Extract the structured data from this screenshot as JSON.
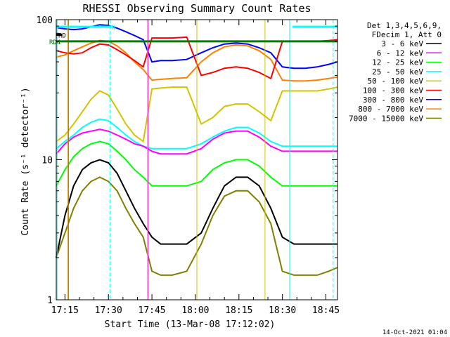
{
  "page": {
    "footer_timestamp": "14-Oct-2021 01:04"
  },
  "chart_data": {
    "type": "line",
    "title": "RHESSI Observing Summary Count Rates",
    "xlabel": "Start Time (13-Mar-08 17:12:02)",
    "ylabel": "Count Rate (s⁻¹ detector⁻¹)",
    "x_unit": "minutes after 17:12:02",
    "xlim": [
      0,
      97
    ],
    "ylim": [
      1,
      100
    ],
    "y_scale": "log",
    "y_tick_labels": [
      "1",
      "10",
      "100"
    ],
    "x_ticks": [
      {
        "label": "17:15",
        "value": 3
      },
      {
        "label": "17:30",
        "value": 18
      },
      {
        "label": "17:45",
        "value": 33
      },
      {
        "label": "18:00",
        "value": 48
      },
      {
        "label": "18:15",
        "value": 63
      },
      {
        "label": "18:30",
        "value": 78
      },
      {
        "label": "18:45",
        "value": 93
      }
    ],
    "legend_header": [
      "Det 1,3,4,5,6,9,",
      "FDecim 1, Att 0"
    ],
    "legend_position": "right",
    "series": [
      {
        "name": "3 - 6 keV",
        "color": "#000000",
        "x": [
          0,
          3,
          6,
          9,
          12,
          15,
          18,
          21,
          24,
          27,
          30,
          33,
          36,
          40,
          45,
          50,
          54,
          58,
          62,
          66,
          70,
          74,
          78,
          82,
          86,
          90,
          94,
          97
        ],
        "y": [
          2.0,
          4.0,
          6.5,
          8.5,
          9.5,
          10.0,
          9.5,
          8.0,
          6.0,
          4.5,
          3.5,
          2.8,
          2.5,
          2.5,
          2.5,
          3.0,
          4.5,
          6.5,
          7.5,
          7.5,
          6.5,
          4.5,
          2.8,
          2.5,
          2.5,
          2.5,
          2.5,
          2.5
        ]
      },
      {
        "name": "6 - 12 keV",
        "color": "#ff00ff",
        "x": [
          0,
          3,
          6,
          9,
          12,
          15,
          18,
          21,
          24,
          27,
          30,
          33,
          36,
          40,
          45,
          50,
          54,
          58,
          62,
          66,
          70,
          74,
          78,
          82,
          86,
          90,
          94,
          97
        ],
        "y": [
          11.0,
          13.0,
          14.5,
          15.5,
          16.0,
          16.5,
          16.0,
          15.0,
          14.0,
          13.0,
          12.5,
          11.5,
          11.0,
          11.0,
          11.0,
          12.0,
          14.0,
          15.5,
          16.0,
          16.0,
          14.5,
          12.5,
          11.5,
          11.5,
          11.5,
          11.5,
          11.5,
          11.5
        ]
      },
      {
        "name": "12 - 25 keV",
        "color": "#00ff00",
        "x": [
          0,
          3,
          6,
          9,
          12,
          15,
          18,
          21,
          24,
          27,
          30,
          33,
          36,
          40,
          45,
          50,
          54,
          58,
          62,
          66,
          70,
          74,
          78,
          82,
          86,
          90,
          94,
          97
        ],
        "y": [
          6.5,
          8.5,
          10.5,
          12.0,
          13.0,
          13.5,
          13.0,
          11.5,
          10.0,
          8.5,
          7.5,
          6.5,
          6.5,
          6.5,
          6.5,
          7.0,
          8.5,
          9.5,
          10.0,
          10.0,
          9.0,
          7.5,
          6.5,
          6.5,
          6.5,
          6.5,
          6.5,
          6.5
        ]
      },
      {
        "name": "25 - 50 keV",
        "color": "#00ffff",
        "x": [
          0,
          3,
          6,
          9,
          12,
          15,
          18,
          21,
          24,
          27,
          30,
          33,
          36,
          40,
          45,
          50,
          54,
          58,
          62,
          66,
          70,
          74,
          78,
          82,
          86,
          90,
          94,
          97
        ],
        "y": [
          12.0,
          13.5,
          15.0,
          17.0,
          18.5,
          19.5,
          19.0,
          17.0,
          15.0,
          13.5,
          12.5,
          12.0,
          12.0,
          12.0,
          12.0,
          13.0,
          14.5,
          16.0,
          17.0,
          17.0,
          15.5,
          13.5,
          12.5,
          12.5,
          12.5,
          12.5,
          12.5,
          12.5
        ]
      },
      {
        "name": "50 - 100 keV",
        "color": "#d4c400",
        "x": [
          0,
          3,
          6,
          9,
          12,
          15,
          18,
          21,
          24,
          27,
          30,
          33,
          36,
          40,
          45,
          50,
          54,
          58,
          62,
          66,
          70,
          74,
          78,
          82,
          86,
          90,
          94,
          97
        ],
        "y": [
          13.5,
          15.0,
          18.0,
          22.0,
          27.0,
          31.0,
          29.0,
          23.0,
          18.0,
          15.0,
          13.5,
          32.0,
          32.5,
          33.0,
          33.0,
          18.0,
          20.0,
          24.0,
          25.0,
          25.0,
          22.0,
          19.0,
          31.0,
          31.0,
          31.0,
          31.0,
          32.0,
          33.0
        ]
      },
      {
        "name": "100 - 300 keV",
        "color": "#ff0000",
        "x": [
          0,
          3,
          6,
          9,
          12,
          15,
          18,
          21,
          24,
          27,
          30,
          33,
          36,
          40,
          45,
          50,
          54,
          58,
          62,
          66,
          70,
          74,
          78,
          82,
          86,
          90,
          94,
          97
        ],
        "y": [
          60.0,
          58.0,
          57.0,
          58.0,
          63.0,
          67.0,
          66.0,
          61.0,
          56.0,
          51.0,
          46.0,
          74.0,
          74.0,
          74.0,
          75.0,
          40.0,
          42.0,
          45.0,
          46.0,
          45.0,
          42.0,
          38.0,
          70.0,
          70.0,
          70.0,
          70.0,
          71.0,
          72.0
        ]
      },
      {
        "name": "300 - 800 keV",
        "color": "#0000ff",
        "x": [
          0,
          3,
          6,
          9,
          12,
          15,
          18,
          21,
          24,
          27,
          30,
          33,
          36,
          40,
          45,
          50,
          54,
          58,
          62,
          66,
          70,
          74,
          78,
          82,
          86,
          90,
          94,
          97
        ],
        "y": [
          88.0,
          86.0,
          85.0,
          86.0,
          89.0,
          92.0,
          91.0,
          87.0,
          82.0,
          77.0,
          72.0,
          50.0,
          51.0,
          51.0,
          52.0,
          58.0,
          63.0,
          67.0,
          68.0,
          67.0,
          63.0,
          58.0,
          46.0,
          45.0,
          45.0,
          46.0,
          48.0,
          50.0
        ]
      },
      {
        "name": "800 - 7000 keV",
        "color": "#ff8000",
        "x": [
          0,
          3,
          6,
          9,
          12,
          15,
          18,
          21,
          24,
          27,
          30,
          33,
          36,
          40,
          45,
          50,
          54,
          58,
          62,
          66,
          70,
          74,
          78,
          82,
          86,
          90,
          94,
          97
        ],
        "y": [
          54.0,
          56.0,
          60.0,
          64.0,
          68.0,
          71.0,
          70.0,
          65.0,
          58.0,
          50.0,
          44.0,
          37.0,
          37.5,
          38.0,
          38.5,
          50.0,
          58.0,
          64.0,
          66.0,
          65.0,
          60.0,
          52.0,
          37.0,
          36.5,
          36.5,
          37.0,
          38.0,
          39.0
        ]
      },
      {
        "name": "7000 - 15000 keV",
        "color": "#808000",
        "x": [
          0,
          3,
          6,
          9,
          12,
          15,
          18,
          21,
          24,
          27,
          30,
          33,
          36,
          40,
          45,
          50,
          54,
          58,
          62,
          66,
          70,
          74,
          78,
          82,
          86,
          90,
          94,
          97
        ],
        "y": [
          2.0,
          3.0,
          4.5,
          6.0,
          7.0,
          7.5,
          7.0,
          6.0,
          4.5,
          3.5,
          2.8,
          1.6,
          1.5,
          1.5,
          1.6,
          2.5,
          4.0,
          5.5,
          6.0,
          6.0,
          5.0,
          3.5,
          1.6,
          1.5,
          1.5,
          1.5,
          1.6,
          1.7
        ]
      }
    ],
    "state_bars": [
      {
        "label": "N",
        "color": "#00ffff",
        "y": 89,
        "segments": [
          [
            0,
            19.5
          ],
          [
            81.5,
            97
          ]
        ]
      },
      {
        "label": "RD",
        "color": "#000000",
        "y": 78,
        "segments": [
          [
            0,
            2
          ]
        ]
      },
      {
        "label": "RD4",
        "color": "#008000",
        "y": 70,
        "segments": [
          [
            0,
            97
          ]
        ]
      }
    ],
    "vertical_markers": [
      {
        "color": "#00ffff",
        "style": "solid",
        "x": [
          0.3,
          80.5
        ]
      },
      {
        "color": "#00ffff",
        "style": "dashed",
        "x": [
          18.5,
          95.5
        ]
      },
      {
        "color": "#d4c400",
        "style": "solid",
        "x": [
          4,
          31.5,
          48.5,
          72
        ]
      },
      {
        "color": "#ff00ff",
        "style": "solid",
        "x": [
          4.2,
          31.7
        ]
      }
    ]
  }
}
